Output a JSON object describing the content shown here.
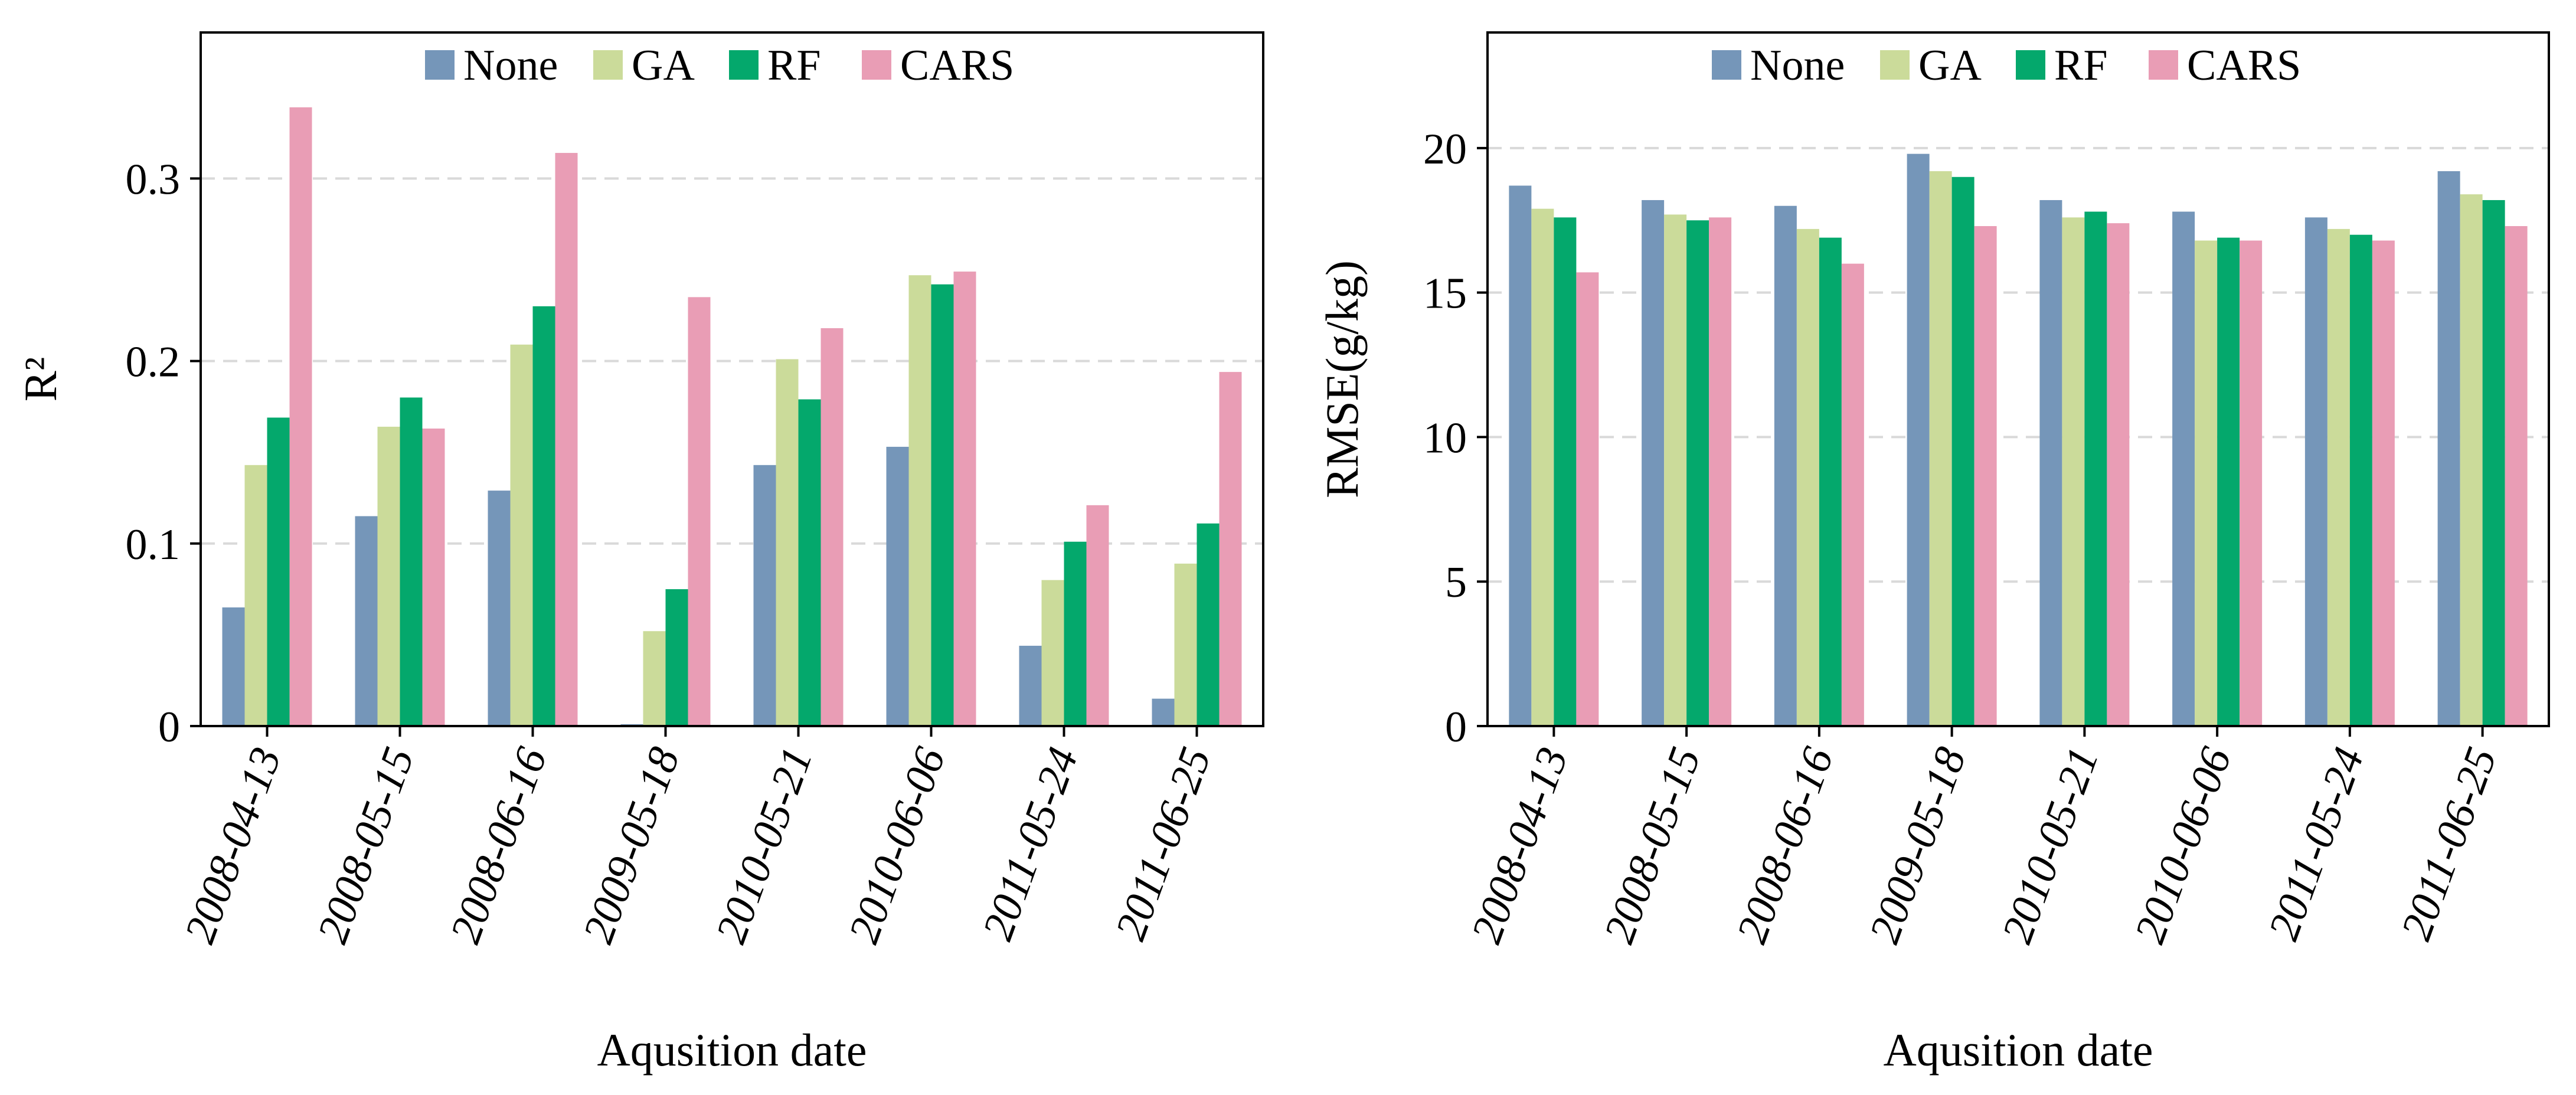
{
  "chart_data": [
    {
      "type": "bar",
      "title": "",
      "xlabel": "Aqusition date",
      "ylabel": "R²",
      "ylim": [
        0,
        0.38
      ],
      "yticks": [
        0,
        0.1,
        0.2,
        0.3
      ],
      "ytick_labels": [
        "0",
        "0.1",
        "0.2",
        "0.3"
      ],
      "grid": "horizontal dashed",
      "legend_position": "top-center",
      "categories": [
        "2008-04-13",
        "2008-05-15",
        "2008-06-16",
        "2009-05-18",
        "2010-05-21",
        "2010-06-06",
        "2011-05-24",
        "2011-06-25"
      ],
      "series": [
        {
          "name": "None",
          "color": "#7596b9",
          "values": [
            0.065,
            0.115,
            0.129,
            0.001,
            0.143,
            0.153,
            0.044,
            0.015
          ]
        },
        {
          "name": "GA",
          "color": "#cbdb9a",
          "values": [
            0.143,
            0.164,
            0.209,
            0.052,
            0.201,
            0.247,
            0.08,
            0.089
          ]
        },
        {
          "name": "RF",
          "color": "#04a86c",
          "values": [
            0.169,
            0.18,
            0.23,
            0.075,
            0.179,
            0.242,
            0.101,
            0.111
          ]
        },
        {
          "name": "CARS",
          "color": "#e99db5",
          "values": [
            0.339,
            0.163,
            0.314,
            0.235,
            0.218,
            0.249,
            0.121,
            0.194
          ]
        }
      ]
    },
    {
      "type": "bar",
      "title": "",
      "xlabel": "Aqusition date",
      "ylabel": "RMSE(g/kg)",
      "ylim": [
        0,
        24
      ],
      "yticks": [
        0,
        5,
        10,
        15,
        20
      ],
      "ytick_labels": [
        "0",
        "5",
        "10",
        "15",
        "20"
      ],
      "grid": "horizontal dashed",
      "legend_position": "top-center",
      "categories": [
        "2008-04-13",
        "2008-05-15",
        "2008-06-16",
        "2009-05-18",
        "2010-05-21",
        "2010-06-06",
        "2011-05-24",
        "2011-06-25"
      ],
      "series": [
        {
          "name": "None",
          "color": "#7596b9",
          "values": [
            18.7,
            18.2,
            18.0,
            19.8,
            18.2,
            17.8,
            17.6,
            19.2
          ]
        },
        {
          "name": "GA",
          "color": "#cbdb9a",
          "values": [
            17.9,
            17.7,
            17.2,
            19.2,
            17.6,
            16.8,
            17.2,
            18.4
          ]
        },
        {
          "name": "RF",
          "color": "#04a86c",
          "values": [
            17.6,
            17.5,
            16.9,
            19.0,
            17.8,
            16.9,
            17.0,
            18.2
          ]
        },
        {
          "name": "CARS",
          "color": "#e99db5",
          "values": [
            15.7,
            17.6,
            16.0,
            17.3,
            17.4,
            16.8,
            16.8,
            17.3
          ]
        }
      ]
    }
  ]
}
